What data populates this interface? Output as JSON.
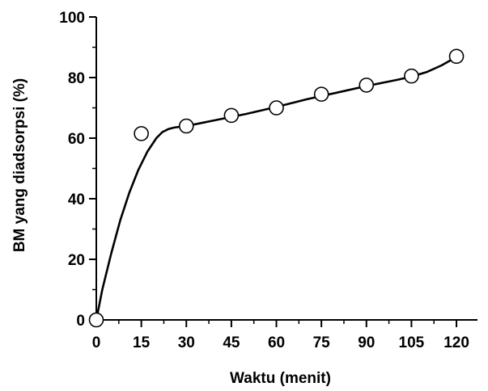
{
  "chart_data": {
    "type": "scatter",
    "title": "",
    "xlabel": "Waktu (menit)",
    "ylabel": "BM yang diadsorpsi (%)",
    "xlim": [
      0,
      127
    ],
    "ylim": [
      0,
      100
    ],
    "x_ticks": [
      0,
      15,
      30,
      45,
      60,
      75,
      90,
      105,
      120
    ],
    "y_ticks": [
      0,
      20,
      40,
      60,
      80,
      100
    ],
    "grid": false,
    "legend": "none",
    "series": [
      {
        "marker": "open-circle",
        "x": [
          0,
          15,
          30,
          45,
          60,
          75,
          90,
          105,
          120
        ],
        "y": [
          0,
          61.5,
          64,
          67.5,
          70,
          74.5,
          77.5,
          80.5,
          87
        ]
      }
    ],
    "fit_curve": {
      "x": [
        0,
        2,
        5,
        8,
        11,
        14,
        17,
        20,
        22,
        24,
        26,
        28,
        30,
        40,
        50,
        60,
        70,
        80,
        90,
        100,
        105,
        110,
        115,
        120
      ],
      "y": [
        0,
        10,
        22,
        33,
        42,
        49.5,
        55.5,
        60,
        62,
        63,
        63.5,
        63.8,
        64,
        66,
        68,
        70.3,
        72.8,
        75,
        77.2,
        79.2,
        80.3,
        81.8,
        84,
        86.8
      ]
    },
    "colors": {
      "line": "#000000",
      "marker_stroke": "#000000",
      "marker_fill": "#ffffff"
    }
  }
}
